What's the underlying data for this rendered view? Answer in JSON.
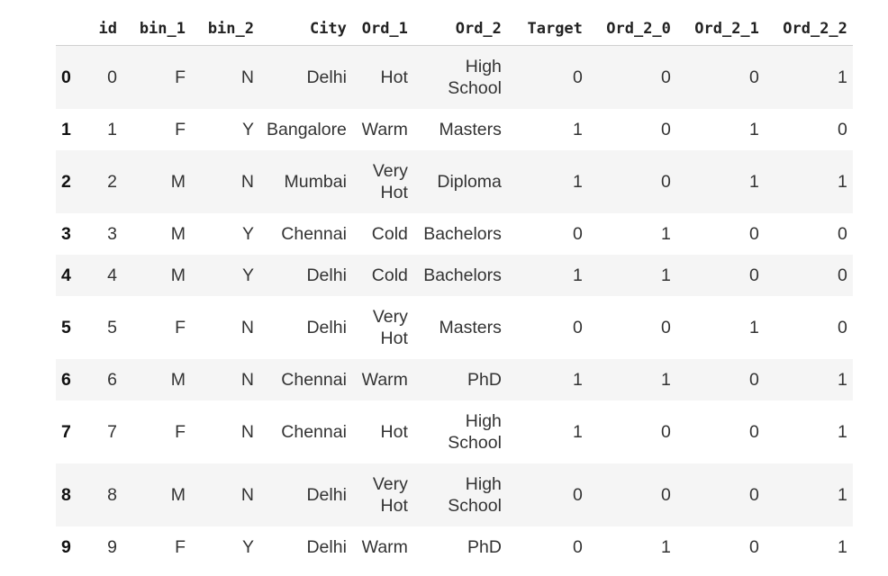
{
  "table": {
    "columns": [
      "id",
      "bin_1",
      "bin_2",
      "City",
      "Ord_1",
      "Ord_2",
      "Target",
      "Ord_2_0",
      "Ord_2_1",
      "Ord_2_2"
    ],
    "rows": [
      {
        "index": "0",
        "cells": [
          "0",
          "F",
          "N",
          "Delhi",
          "Hot",
          "High School",
          "0",
          "0",
          "0",
          "1"
        ]
      },
      {
        "index": "1",
        "cells": [
          "1",
          "F",
          "Y",
          "Bangalore",
          "Warm",
          "Masters",
          "1",
          "0",
          "1",
          "0"
        ]
      },
      {
        "index": "2",
        "cells": [
          "2",
          "M",
          "N",
          "Mumbai",
          "Very Hot",
          "Diploma",
          "1",
          "0",
          "1",
          "1"
        ]
      },
      {
        "index": "3",
        "cells": [
          "3",
          "M",
          "Y",
          "Chennai",
          "Cold",
          "Bachelors",
          "0",
          "1",
          "0",
          "0"
        ]
      },
      {
        "index": "4",
        "cells": [
          "4",
          "M",
          "Y",
          "Delhi",
          "Cold",
          "Bachelors",
          "1",
          "1",
          "0",
          "0"
        ]
      },
      {
        "index": "5",
        "cells": [
          "5",
          "F",
          "N",
          "Delhi",
          "Very Hot",
          "Masters",
          "0",
          "0",
          "1",
          "0"
        ]
      },
      {
        "index": "6",
        "cells": [
          "6",
          "M",
          "N",
          "Chennai",
          "Warm",
          "PhD",
          "1",
          "1",
          "0",
          "1"
        ]
      },
      {
        "index": "7",
        "cells": [
          "7",
          "F",
          "N",
          "Chennai",
          "Hot",
          "High School",
          "1",
          "0",
          "0",
          "1"
        ]
      },
      {
        "index": "8",
        "cells": [
          "8",
          "M",
          "N",
          "Delhi",
          "Very Hot",
          "High School",
          "0",
          "0",
          "0",
          "1"
        ]
      },
      {
        "index": "9",
        "cells": [
          "9",
          "F",
          "Y",
          "Delhi",
          "Warm",
          "PhD",
          "0",
          "1",
          "0",
          "1"
        ]
      }
    ]
  }
}
